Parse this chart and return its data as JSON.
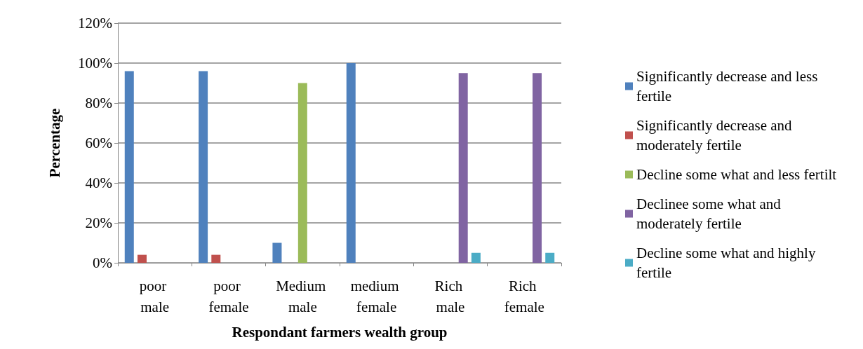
{
  "chart_data": {
    "type": "bar",
    "xlabel": "Respondant farmers wealth group",
    "ylabel": "Percentage",
    "categories": [
      "poor male",
      "poor female",
      "Medium male",
      "medium female",
      "Rich male",
      "Rich female"
    ],
    "series": [
      {
        "name": "Significantly decrease and less fertile",
        "color": "#4f81bd",
        "values": [
          96,
          96,
          10,
          100,
          null,
          null
        ]
      },
      {
        "name": "Significantly decrease and moderately fertile",
        "color": "#c0504d",
        "values": [
          4,
          4,
          null,
          null,
          null,
          null
        ]
      },
      {
        "name": "Decline some what and less fertilt",
        "color": "#9bbb59",
        "values": [
          null,
          null,
          90,
          null,
          null,
          null
        ]
      },
      {
        "name": "Declinee some what and moderately fertile",
        "color": "#8064a2",
        "values": [
          null,
          null,
          null,
          null,
          95,
          95
        ]
      },
      {
        "name": "Decline some what and highly fertile",
        "color": "#4bacc6",
        "values": [
          null,
          null,
          null,
          null,
          5,
          5
        ]
      }
    ],
    "ylim": [
      0,
      120
    ],
    "yticks": [
      {
        "value": 0,
        "label": "0%"
      },
      {
        "value": 20,
        "label": "20%"
      },
      {
        "value": 40,
        "label": "40%"
      },
      {
        "value": 60,
        "label": "60%"
      },
      {
        "value": 80,
        "label": "80%"
      },
      {
        "value": 100,
        "label": "100%"
      },
      {
        "value": 120,
        "label": "120%"
      }
    ],
    "grid": "y",
    "legend": "right"
  }
}
